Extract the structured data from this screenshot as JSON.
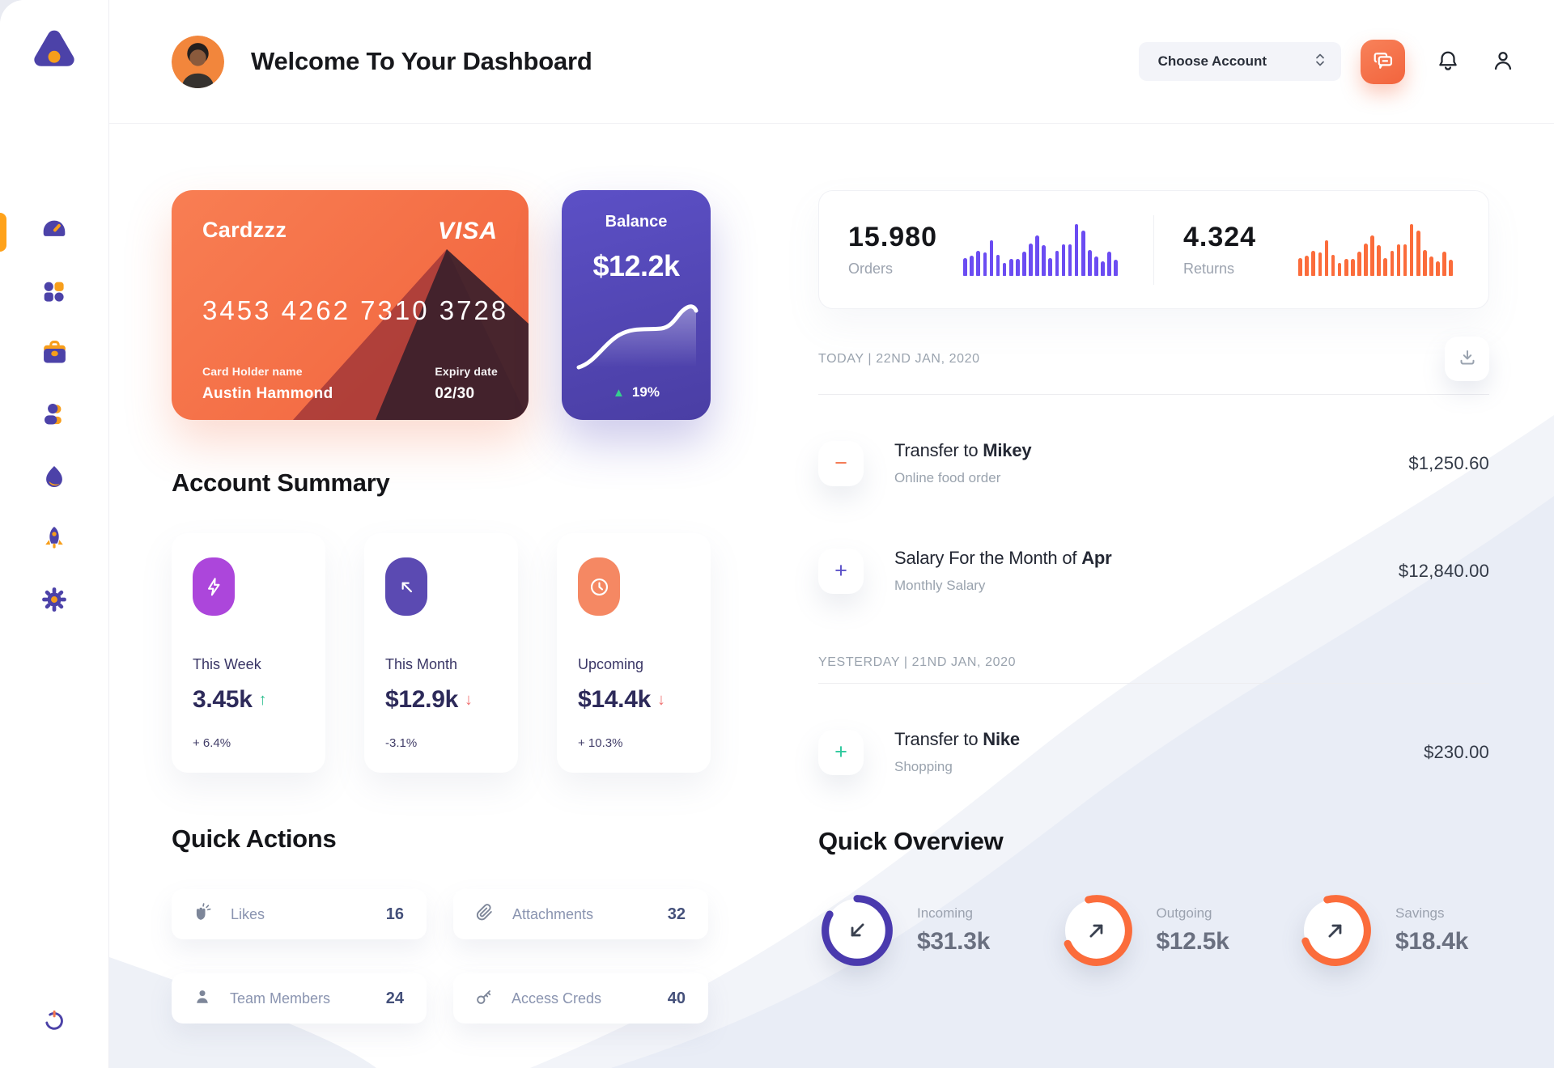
{
  "header": {
    "title": "Welcome To Your Dashboard",
    "account_selector_label": "Choose Account"
  },
  "sidebar": {
    "icons": [
      "dashboard-gauge-icon",
      "apps-grid-icon",
      "briefcase-icon",
      "team-icon",
      "activity-flame-icon",
      "rocket-icon",
      "settings-gear-icon",
      "power-icon"
    ],
    "active_color": "#FFA21A"
  },
  "wallet_card": {
    "name": "Cardzzz",
    "brand": "VISA",
    "number": "3453 4262 7310 3728",
    "holder_label": "Card Holder name",
    "holder": "Austin Hammond",
    "expiry_label": "Expiry date",
    "expiry": "02/30"
  },
  "balance_card": {
    "label": "Balance",
    "value": "$12.2k",
    "up_arrow": "▲",
    "change": "19%"
  },
  "stats": {
    "orders": {
      "value": "15.980",
      "label": "Orders",
      "bar_color": "#6B4CF2",
      "bars": [
        34,
        38,
        48,
        44,
        68,
        40,
        24,
        32,
        32,
        46,
        62,
        78,
        58,
        34,
        48,
        60,
        60,
        100,
        86,
        50,
        36,
        28,
        46,
        30
      ]
    },
    "returns": {
      "value": "4.324",
      "label": "Returns",
      "bar_color": "#FB6C3B",
      "bars": [
        34,
        38,
        48,
        44,
        68,
        40,
        24,
        32,
        32,
        46,
        62,
        78,
        58,
        34,
        48,
        60,
        60,
        100,
        86,
        50,
        36,
        28,
        46,
        30
      ]
    }
  },
  "transactions": {
    "groups": [
      {
        "date": "TODAY | 22ND JAN, 2020",
        "items": [
          {
            "title": "Transfer to ",
            "title_bold": "Mikey",
            "subtitle": "Online food order",
            "amount": "$1,250.60",
            "sign": "−",
            "sign_color": "#F4764F"
          },
          {
            "title": "Salary For the Month of ",
            "title_bold": "Apr",
            "subtitle": "Monthly Salary",
            "amount": "$12,840.00",
            "sign": "+",
            "sign_color": "#5B51C8"
          }
        ]
      },
      {
        "date": "YESTERDAY | 21ND JAN, 2020",
        "items": [
          {
            "title": "Transfer to ",
            "title_bold": "Nike",
            "subtitle": "Shopping",
            "amount": "$230.00",
            "sign": "+",
            "sign_color": "#2FC99E"
          }
        ]
      }
    ]
  },
  "summary": {
    "title": "Account Summary",
    "cards": [
      {
        "label": "This Week",
        "value": "3.45k",
        "arrow": "↑",
        "arrow_color": "#2FBF8F",
        "delta": "+ 6.4%",
        "icon": "lightning-icon",
        "icon_bg": "#AC46DB"
      },
      {
        "label": "This Month",
        "value": "$12.9k",
        "arrow": "↓",
        "arrow_color": "#F07373",
        "delta": "-3.1%",
        "icon": "arrow-up-left-icon",
        "icon_bg": "#5B4AB2"
      },
      {
        "label": "Upcoming",
        "value": "$14.4k",
        "arrow": "↓",
        "arrow_color": "#F07373",
        "delta": "+ 10.3%",
        "icon": "clock-icon",
        "icon_bg": "#F58863"
      }
    ]
  },
  "quick_actions": {
    "title": "Quick Actions",
    "items": [
      {
        "label": "Likes",
        "count": "16",
        "icon": "clap-icon"
      },
      {
        "label": "Attachments",
        "count": "32",
        "icon": "paperclip-icon"
      },
      {
        "label": "Team Members",
        "count": "24",
        "icon": "person-icon"
      },
      {
        "label": "Access Creds",
        "count": "40",
        "icon": "key-icon"
      }
    ]
  },
  "overview": {
    "title": "Quick Overview",
    "items": [
      {
        "label": "Incoming",
        "value": "$31.3k",
        "color": "#4A3AAE",
        "arc": 300,
        "start": 0,
        "direction_icon": "arrow-down-left-icon"
      },
      {
        "label": "Outgoing",
        "value": "$12.5k",
        "color": "#FB6C3B",
        "arc": 260,
        "start": 345,
        "direction_icon": "arrow-up-right-icon"
      },
      {
        "label": "Savings",
        "value": "$18.4k",
        "color": "#FB6C3B",
        "arc": 265,
        "start": 345,
        "direction_icon": "arrow-up-right-icon"
      }
    ]
  }
}
